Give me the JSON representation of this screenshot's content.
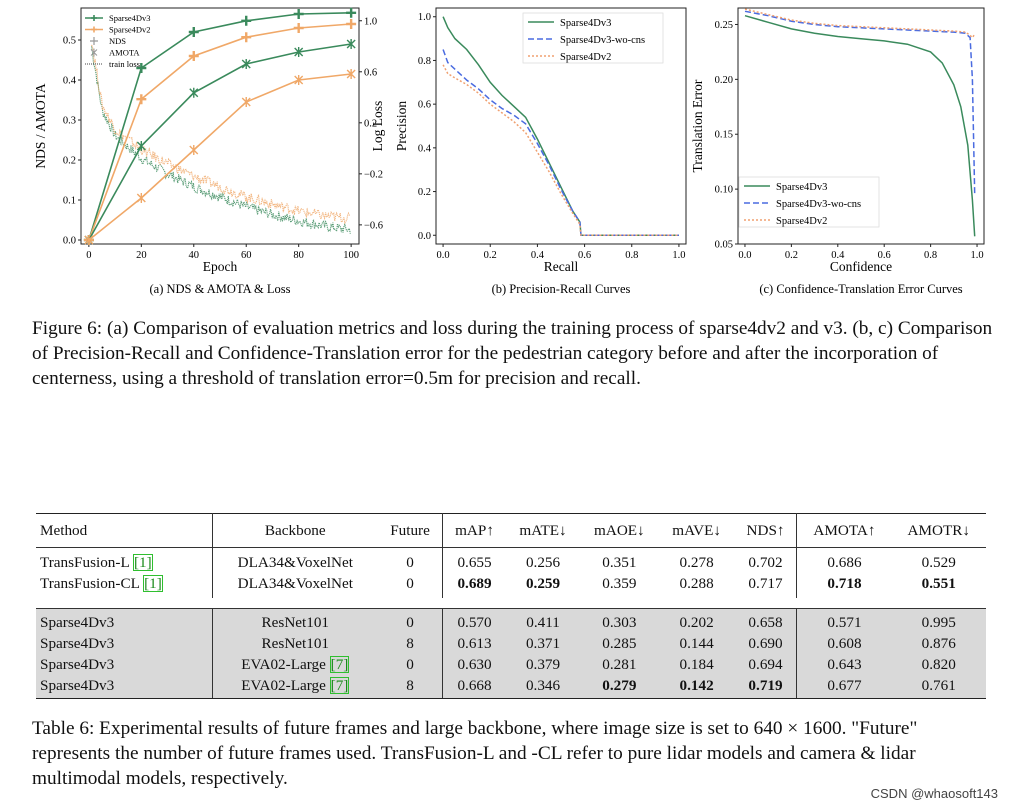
{
  "figure": {
    "caption": "Figure 6: (a) Comparison of evaluation metrics and loss during the training process of sparse4dv2 and v3. (b, c) Comparison of Precision-Recall and Confidence-Translation error for the pedestrian category before and after the incorporation of centerness, using a threshold of translation error=0.5m for precision and recall.",
    "panels": [
      {
        "caption": "(a) NDS & AMOTA & Loss"
      },
      {
        "caption": "(b) Precision-Recall Curves"
      },
      {
        "caption": "(c) Confidence-Translation Error Curves"
      }
    ]
  },
  "chart_data": [
    {
      "type": "line",
      "title": "(a) NDS & AMOTA & Loss",
      "xlabel": "Epoch",
      "ylabel": "NDS / AMOTA",
      "y2label": "Log Loss",
      "xlim": [
        -3,
        103
      ],
      "ylim": [
        -0.01,
        0.58
      ],
      "y2lim": [
        -0.75,
        1.1
      ],
      "xticks": [
        "0",
        "20",
        "40",
        "60",
        "80",
        "100"
      ],
      "yticks": [
        "0.0",
        "0.1",
        "0.2",
        "0.3",
        "0.4",
        "0.5"
      ],
      "y2ticks": [
        "1.0",
        "0.6",
        "0.2",
        "−0.2",
        "−0.6"
      ],
      "legend": [
        "Sparse4Dv3",
        "Sparse4Dv2",
        "NDS",
        "AMOTA",
        "train loss"
      ],
      "legend_position": "top-left",
      "colors": {
        "v3": "#3a8a5c",
        "v2": "#f0a868"
      },
      "x": [
        0,
        20,
        40,
        60,
        80,
        100
      ],
      "series": [
        {
          "name": "Sparse4Dv3 NDS",
          "values": [
            0.0,
            0.43,
            0.52,
            0.548,
            0.565,
            0.568
          ]
        },
        {
          "name": "Sparse4Dv2 NDS",
          "values": [
            0.0,
            0.352,
            0.46,
            0.507,
            0.53,
            0.54
          ]
        },
        {
          "name": "Sparse4Dv3 AMOTA",
          "values": [
            0.0,
            0.235,
            0.368,
            0.44,
            0.47,
            0.49
          ]
        },
        {
          "name": "Sparse4Dv2 AMOTA",
          "values": [
            0.0,
            0.105,
            0.225,
            0.345,
            0.4,
            0.415
          ]
        }
      ],
      "loss_series": [
        {
          "name": "Sparse4Dv3 train loss",
          "epochs": [
            1,
            5,
            10,
            20,
            30,
            40,
            50,
            60,
            70,
            80,
            90,
            100
          ],
          "values": [
            0.8,
            0.3,
            0.1,
            -0.08,
            -0.2,
            -0.3,
            -0.38,
            -0.46,
            -0.52,
            -0.57,
            -0.61,
            -0.64
          ]
        },
        {
          "name": "Sparse4Dv2 train loss",
          "epochs": [
            1,
            5,
            10,
            20,
            30,
            40,
            50,
            60,
            70,
            80,
            90,
            100
          ],
          "values": [
            0.85,
            0.34,
            0.15,
            -0.01,
            -0.12,
            -0.22,
            -0.3,
            -0.38,
            -0.44,
            -0.49,
            -0.53,
            -0.55
          ]
        }
      ]
    },
    {
      "type": "line",
      "title": "(b) Precision-Recall Curves",
      "xlabel": "Recall",
      "ylabel": "Precision",
      "xlim": [
        -0.03,
        1.03
      ],
      "ylim": [
        -0.04,
        1.04
      ],
      "xticks": [
        "0.0",
        "0.2",
        "0.4",
        "0.6",
        "0.8",
        "1.0"
      ],
      "yticks": [
        "0.0",
        "0.2",
        "0.4",
        "0.6",
        "0.8",
        "1.0"
      ],
      "legend": [
        "Sparse4Dv3",
        "Sparse4Dv3-wo-cns",
        "Sparse4Dv2"
      ],
      "legend_position": "top-right",
      "series": [
        {
          "name": "Sparse4Dv3",
          "color": "#3a8a5c",
          "dash": "",
          "x": [
            0,
            0.02,
            0.05,
            0.1,
            0.15,
            0.2,
            0.25,
            0.3,
            0.35,
            0.4,
            0.45,
            0.5,
            0.55,
            0.58,
            0.585,
            1.0
          ],
          "y": [
            1.0,
            0.95,
            0.9,
            0.85,
            0.78,
            0.7,
            0.64,
            0.59,
            0.54,
            0.44,
            0.33,
            0.22,
            0.11,
            0.06,
            0.0,
            0.0
          ]
        },
        {
          "name": "Sparse4Dv3-wo-cns",
          "color": "#4a6be0",
          "dash": "6,3",
          "x": [
            0,
            0.02,
            0.05,
            0.1,
            0.15,
            0.2,
            0.25,
            0.3,
            0.35,
            0.4,
            0.45,
            0.5,
            0.55,
            0.58,
            0.585,
            1.0
          ],
          "y": [
            0.85,
            0.79,
            0.76,
            0.71,
            0.67,
            0.62,
            0.58,
            0.55,
            0.51,
            0.42,
            0.32,
            0.21,
            0.11,
            0.06,
            0.0,
            0.0
          ]
        },
        {
          "name": "Sparse4Dv2",
          "color": "#f0a070",
          "dash": "2,2",
          "x": [
            0,
            0.02,
            0.05,
            0.1,
            0.15,
            0.2,
            0.25,
            0.3,
            0.35,
            0.4,
            0.45,
            0.5,
            0.55,
            0.58,
            0.585,
            1.0
          ],
          "y": [
            0.78,
            0.74,
            0.72,
            0.69,
            0.65,
            0.6,
            0.56,
            0.52,
            0.47,
            0.38,
            0.29,
            0.19,
            0.1,
            0.05,
            0.0,
            0.0
          ]
        }
      ]
    },
    {
      "type": "line",
      "title": "(c) Confidence-Translation Error Curves",
      "xlabel": "Confidence",
      "ylabel": "Translation Error",
      "xlim": [
        -0.03,
        1.03
      ],
      "ylim": [
        0.05,
        0.265
      ],
      "xticks": [
        "0.0",
        "0.2",
        "0.4",
        "0.6",
        "0.8",
        "1.0"
      ],
      "yticks": [
        "0.05",
        "0.10",
        "0.15",
        "0.20",
        "0.25"
      ],
      "legend": [
        "Sparse4Dv3",
        "Sparse4Dv3-wo-cns",
        "Sparse4Dv2"
      ],
      "legend_position": "bottom-left",
      "series": [
        {
          "name": "Sparse4Dv3",
          "color": "#3a8a5c",
          "dash": "",
          "x": [
            0,
            0.1,
            0.2,
            0.3,
            0.4,
            0.5,
            0.6,
            0.7,
            0.8,
            0.85,
            0.9,
            0.93,
            0.96,
            0.98,
            0.99
          ],
          "y": [
            0.258,
            0.252,
            0.246,
            0.242,
            0.239,
            0.237,
            0.235,
            0.232,
            0.225,
            0.215,
            0.195,
            0.175,
            0.14,
            0.09,
            0.057
          ]
        },
        {
          "name": "Sparse4Dv3-wo-cns",
          "color": "#4a6be0",
          "dash": "6,3",
          "x": [
            0,
            0.1,
            0.2,
            0.3,
            0.4,
            0.5,
            0.6,
            0.7,
            0.8,
            0.9,
            0.95,
            0.97,
            0.98,
            0.99
          ],
          "y": [
            0.262,
            0.258,
            0.253,
            0.25,
            0.248,
            0.247,
            0.246,
            0.245,
            0.244,
            0.243,
            0.242,
            0.238,
            0.2,
            0.095
          ]
        },
        {
          "name": "Sparse4Dv2",
          "color": "#f0a070",
          "dash": "2,2",
          "x": [
            0,
            0.1,
            0.2,
            0.3,
            0.4,
            0.5,
            0.6,
            0.7,
            0.8,
            0.9,
            0.95,
            0.97,
            0.98,
            0.99
          ],
          "y": [
            0.264,
            0.259,
            0.254,
            0.251,
            0.249,
            0.248,
            0.247,
            0.246,
            0.245,
            0.244,
            0.243,
            0.24,
            0.238,
            0.241
          ]
        }
      ]
    }
  ],
  "table": {
    "caption": "Table 6: Experimental results of future frames and large backbone, where image size is set to 640 × 1600. \"Future\" represents the number of future frames used. TransFusion-L and -CL refer to pure lidar models and camera & lidar multimodal models, respectively.",
    "headers": [
      "Method",
      "Backbone",
      "Future",
      "mAP↑",
      "mATE↓",
      "mAOE↓",
      "mAVE↓",
      "NDS↑",
      "AMOTA↑",
      "AMOTR↓"
    ],
    "rows": [
      {
        "method": "TransFusion-L ",
        "ref": "[1]",
        "backbone": "DLA34&VoxelNet",
        "backbone_ref": "",
        "future": "0",
        "map": "0.655",
        "mate": "0.256",
        "maoe": "0.351",
        "mave": "0.278",
        "nds": "0.702",
        "amota": "0.686",
        "amotr": "0.529"
      },
      {
        "method": "TransFusion-CL ",
        "ref": "[1]",
        "backbone": "DLA34&VoxelNet",
        "backbone_ref": "",
        "future": "0",
        "map": "0.689",
        "mate": "0.259",
        "maoe": "0.359",
        "mave": "0.288",
        "nds": "0.717",
        "amota": "0.718",
        "amotr": "0.551"
      },
      {
        "method": "Sparse4Dv3",
        "ref": "",
        "backbone": "ResNet101",
        "backbone_ref": "",
        "future": "0",
        "map": "0.570",
        "mate": "0.411",
        "maoe": "0.303",
        "mave": "0.202",
        "nds": "0.658",
        "amota": "0.571",
        "amotr": "0.995"
      },
      {
        "method": "Sparse4Dv3",
        "ref": "",
        "backbone": "ResNet101",
        "backbone_ref": "",
        "future": "8",
        "map": "0.613",
        "mate": "0.371",
        "maoe": "0.285",
        "mave": "0.144",
        "nds": "0.690",
        "amota": "0.608",
        "amotr": "0.876"
      },
      {
        "method": "Sparse4Dv3",
        "ref": "",
        "backbone": "EVA02-Large ",
        "backbone_ref": "[7]",
        "future": "0",
        "map": "0.630",
        "mate": "0.379",
        "maoe": "0.281",
        "mave": "0.184",
        "nds": "0.694",
        "amota": "0.643",
        "amotr": "0.820"
      },
      {
        "method": "Sparse4Dv3",
        "ref": "",
        "backbone": "EVA02-Large ",
        "backbone_ref": "[7]",
        "future": "8",
        "map": "0.668",
        "mate": "0.346",
        "maoe": "0.279",
        "mave": "0.142",
        "nds": "0.719",
        "amota": "0.677",
        "amotr": "0.761"
      }
    ]
  },
  "watermark": "CSDN @whaosoft143"
}
